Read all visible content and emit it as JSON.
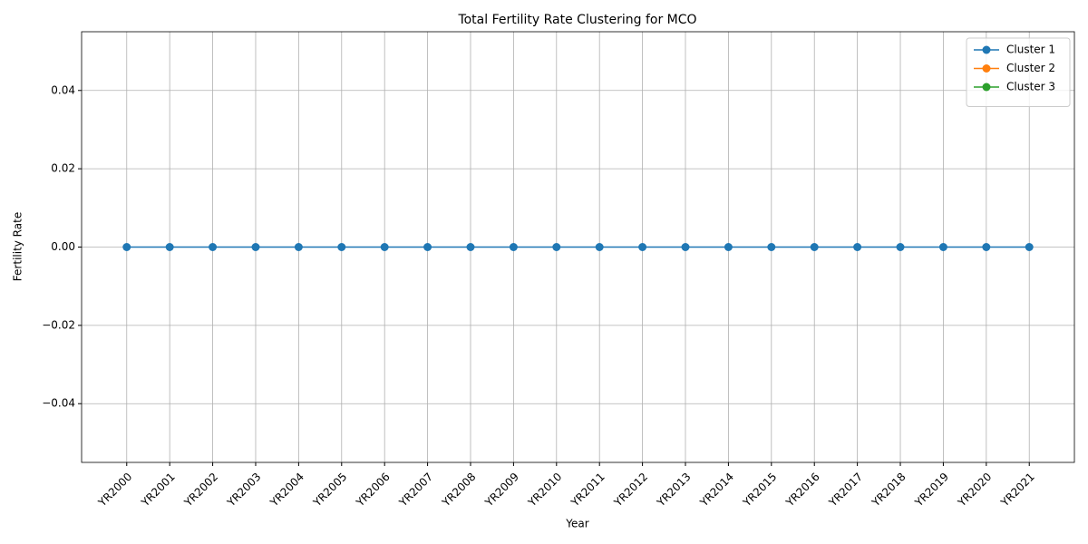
{
  "chart_data": {
    "type": "line",
    "title": "Total Fertility Rate Clustering for MCO",
    "x_label": "Year",
    "y_label": "Fertility Rate",
    "categories": [
      "YR2000",
      "YR2001",
      "YR2002",
      "YR2003",
      "YR2004",
      "YR2005",
      "YR2006",
      "YR2007",
      "YR2008",
      "YR2009",
      "YR2010",
      "YR2011",
      "YR2012",
      "YR2013",
      "YR2014",
      "YR2015",
      "YR2016",
      "YR2017",
      "YR2018",
      "YR2019",
      "YR2020",
      "YR2021"
    ],
    "series": [
      {
        "name": "Cluster 1",
        "color": "#1f77b4",
        "values": [
          0,
          0,
          0,
          0,
          0,
          0,
          0,
          0,
          0,
          0,
          0,
          0,
          0,
          0,
          0,
          0,
          0,
          0,
          0,
          0,
          0,
          0
        ]
      },
      {
        "name": "Cluster 2",
        "color": "#ff7f0e",
        "values": [
          null,
          null,
          null,
          null,
          null,
          null,
          null,
          null,
          null,
          null,
          null,
          null,
          null,
          null,
          null,
          null,
          null,
          null,
          null,
          null,
          null,
          null
        ]
      },
      {
        "name": "Cluster 3",
        "color": "#2ca02c",
        "values": [
          null,
          null,
          null,
          null,
          null,
          null,
          null,
          null,
          null,
          null,
          null,
          null,
          null,
          null,
          null,
          null,
          null,
          null,
          null,
          null,
          null,
          null
        ]
      }
    ],
    "ylim": [
      -0.055,
      0.055
    ],
    "yticks": [
      {
        "value": -0.04,
        "label": "−0.04"
      },
      {
        "value": -0.02,
        "label": "−0.02"
      },
      {
        "value": 0,
        "label": "0.00"
      },
      {
        "value": 0.02,
        "label": "0.02"
      },
      {
        "value": 0.04,
        "label": "0.04"
      }
    ],
    "grid": true,
    "legend": "upper right"
  }
}
